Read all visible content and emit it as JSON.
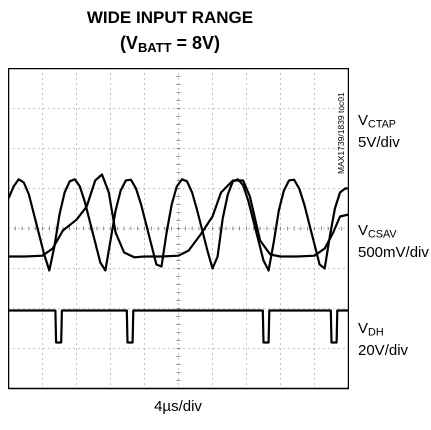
{
  "title": {
    "line1": "WIDE INPUT RANGE",
    "line2_pre": "(V",
    "line2_sub": "BATT",
    "line2_post": " = 8V)"
  },
  "figure_id": "MAX1739/1839 toc01",
  "chart_data": {
    "type": "line",
    "xlabel": "4µs/div",
    "grid": true,
    "divisions": {
      "x": 10,
      "y": 8
    },
    "series": [
      {
        "name_main": "V",
        "name_sub": "CTAP",
        "scale": "5V/div",
        "x": [
          0,
          0.15,
          0.3,
          0.45,
          0.6,
          0.75,
          0.9,
          1.05,
          1.2,
          1.35,
          1.5,
          1.65,
          1.8,
          1.95,
          2.1,
          2.25,
          2.4,
          2.55,
          2.7,
          2.85,
          3.0,
          3.15,
          3.3,
          3.45,
          3.6,
          3.75,
          3.9,
          4.05,
          4.2,
          4.35,
          4.5,
          4.65,
          4.8,
          4.95,
          5.1,
          5.25,
          5.4,
          5.55,
          5.7,
          5.85,
          6.0,
          6.15,
          6.3,
          6.45,
          6.6,
          6.75,
          6.9,
          7.05,
          7.2,
          7.35,
          7.5,
          7.65,
          7.8,
          7.95,
          8.1,
          8.25,
          8.4,
          8.55,
          8.7,
          8.85,
          9.0,
          9.15,
          9.3,
          9.45,
          9.6,
          9.75,
          9.9,
          10.0
        ],
        "y": [
          0.75,
          1.05,
          1.23,
          1.15,
          0.85,
          0.35,
          -0.15,
          -0.65,
          -1.05,
          -0.45,
          0.35,
          0.9,
          1.18,
          1.23,
          1.05,
          0.65,
          0.15,
          -0.35,
          -0.85,
          -1.05,
          -0.3,
          0.45,
          0.95,
          1.2,
          1.22,
          1.0,
          0.6,
          0.1,
          -0.4,
          -0.9,
          -0.95,
          -0.1,
          0.6,
          1.05,
          1.23,
          1.18,
          0.9,
          0.45,
          -0.05,
          -0.55,
          -1.0,
          -0.7,
          0.25,
          0.85,
          1.18,
          1.23,
          1.08,
          0.7,
          0.2,
          -0.3,
          -0.8,
          -1.05,
          -0.35,
          0.45,
          0.95,
          1.2,
          1.22,
          1.0,
          0.6,
          0.1,
          -0.4,
          -0.9,
          -1.0,
          -0.2,
          0.5,
          0.9,
          1.0,
          1.0
        ]
      },
      {
        "name_main": "V",
        "name_sub": "CSAV",
        "scale": "500mV/div",
        "x": [
          0,
          0.5,
          1.0,
          1.3,
          1.6,
          2.0,
          2.3,
          2.55,
          2.75,
          2.95,
          3.15,
          3.4,
          3.7,
          4.0,
          4.5,
          5.0,
          5.3,
          5.65,
          6.0,
          6.25,
          6.6,
          6.9,
          7.1,
          7.4,
          7.7,
          8.0,
          8.5,
          9.0,
          9.3,
          9.55,
          9.75,
          10.0
        ],
        "y": [
          -0.7,
          -0.7,
          -0.68,
          -0.5,
          -0.05,
          0.22,
          0.55,
          1.2,
          1.35,
          0.9,
          -0.1,
          -0.6,
          -0.72,
          -0.7,
          -0.7,
          -0.68,
          -0.55,
          -0.15,
          0.3,
          0.9,
          1.2,
          1.2,
          0.8,
          -0.3,
          -0.65,
          -0.7,
          -0.7,
          -0.68,
          -0.5,
          -0.1,
          0.3,
          0.35
        ]
      },
      {
        "name_main": "V",
        "name_sub": "DH",
        "scale": "20V/div",
        "x": [
          0,
          1.38,
          1.4,
          1.55,
          1.57,
          3.48,
          3.5,
          3.65,
          3.67,
          7.48,
          7.5,
          7.65,
          7.67,
          9.48,
          9.5,
          9.65,
          9.67,
          10.0
        ],
        "y": [
          -2.05,
          -2.05,
          -2.85,
          -2.85,
          -2.05,
          -2.05,
          -2.85,
          -2.85,
          -2.05,
          -2.05,
          -2.85,
          -2.85,
          -2.05,
          -2.05,
          -2.85,
          -2.85,
          -2.05,
          -2.05
        ]
      }
    ]
  }
}
